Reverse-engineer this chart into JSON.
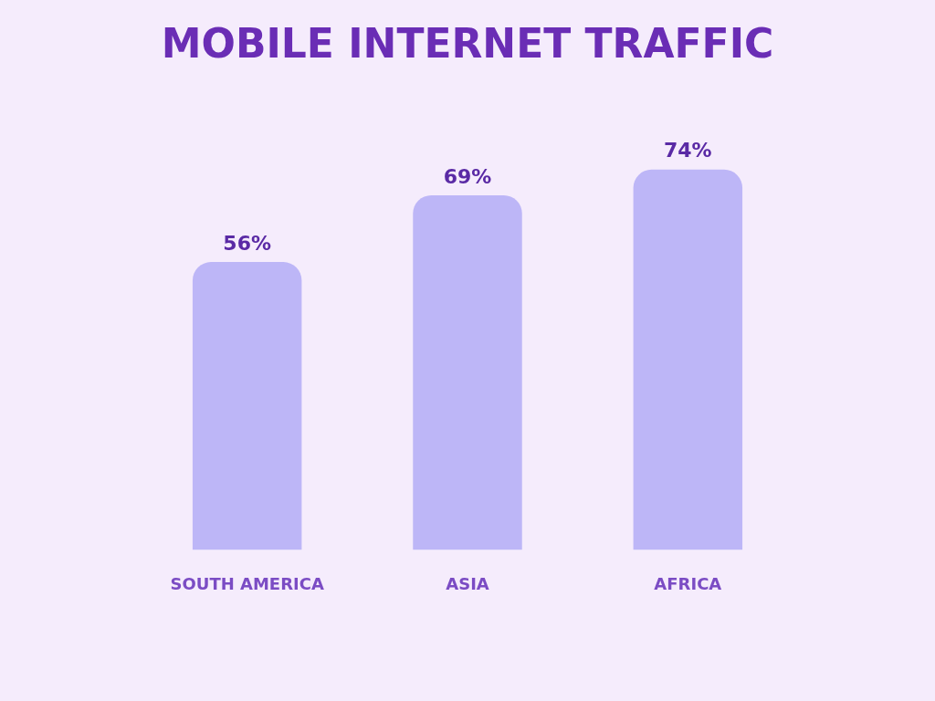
{
  "chart_data": {
    "type": "bar",
    "title": "MOBILE INTERNET TRAFFIC",
    "categories": [
      "SOUTH AMERICA",
      "ASIA",
      "AFRICA"
    ],
    "values": [
      56,
      69,
      74
    ],
    "color": "#bdb6f7",
    "value_labels": [
      "56%",
      "69%",
      "74%"
    ],
    "grid": false,
    "legend": false
  }
}
